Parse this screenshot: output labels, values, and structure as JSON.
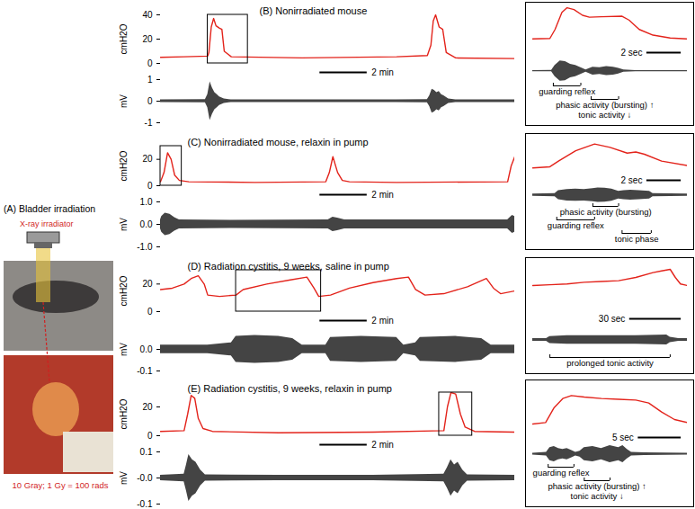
{
  "panel_a": {
    "label": "(A) Bladder irradiation",
    "source": "X-ray irradiator",
    "dose": "10 Gray; 1 Gy = 100 rads"
  },
  "chart_data": [
    {
      "type": "line",
      "title": "(B) Nonirradiated mouse",
      "ylabel": "cmH2O",
      "tick_labels": "y",
      "x": [
        0,
        1,
        2,
        2.05,
        2.15,
        2.25,
        2.35,
        2.5,
        2.6,
        2.7,
        3,
        6,
        10,
        11.3,
        11.45,
        11.55,
        11.65,
        11.8,
        11.95,
        12.1,
        12.5,
        15
      ],
      "series": [
        {
          "color": "#e3231b",
          "values": [
            5,
            5.5,
            6,
            9,
            30,
            37,
            31,
            29,
            28,
            10,
            5.5,
            4.5,
            5.5,
            6.5,
            15,
            35,
            40,
            30,
            28,
            9,
            4.5,
            4
          ]
        }
      ],
      "xlim": [
        0,
        15
      ],
      "ylim": [
        0,
        40
      ],
      "yticks": [
        0,
        20,
        40
      ],
      "window": [
        2,
        3.7
      ]
    },
    {
      "type": "area",
      "ylabel": "mV",
      "tick_labels": "y",
      "color": "#444444",
      "x": [
        0,
        1.9,
        2.0,
        2.1,
        2.2,
        2.3,
        2.4,
        2.5,
        2.7,
        3,
        6,
        10,
        11.3,
        11.4,
        11.5,
        11.6,
        11.7,
        11.8,
        11.9,
        12.0,
        12.2,
        12.5,
        15
      ],
      "envelope": [
        0.06,
        0.07,
        0.3,
        0.9,
        0.6,
        0.4,
        0.3,
        0.2,
        0.1,
        0.06,
        0.06,
        0.06,
        0.07,
        0.25,
        0.55,
        0.5,
        0.4,
        0.45,
        0.3,
        0.25,
        0.1,
        0.06,
        0.06
      ],
      "xlim": [
        0,
        15
      ],
      "ylim": [
        -1,
        1
      ],
      "yticks": [
        -1,
        0,
        1
      ],
      "scale_bar": {
        "length": 2,
        "label": "2 min"
      }
    },
    {
      "type": "line",
      "tick_labels": false,
      "x": [
        0,
        1.0,
        1.3,
        1.7,
        2.0,
        2.4,
        2.9,
        3.3,
        4,
        5.2,
        5.6,
        6.2,
        7,
        8,
        9
      ],
      "series": [
        {
          "color": "#e3231b",
          "values": [
            5,
            5.5,
            15,
            33,
            38,
            36,
            30,
            28,
            28.5,
            29,
            25,
            15,
            9,
            6,
            5
          ]
        }
      ],
      "xlim": [
        0,
        9
      ],
      "ylim": [
        0,
        40
      ]
    },
    {
      "type": "area",
      "tick_labels": false,
      "color": "#444444",
      "x": [
        0,
        1.1,
        1.3,
        1.6,
        1.9,
        2.2,
        2.5,
        2.8,
        3.1,
        3.5,
        3.9,
        4.3,
        4.7,
        5.0,
        5.3,
        6,
        9
      ],
      "envelope": [
        0.05,
        0.06,
        0.5,
        0.9,
        0.85,
        0.6,
        0.5,
        0.3,
        0.1,
        0.35,
        0.3,
        0.4,
        0.35,
        0.25,
        0.1,
        0.05,
        0.05
      ],
      "xlim": [
        0,
        9
      ],
      "ylim": [
        -1,
        1
      ],
      "scale_bar": {
        "length": 2,
        "label": "2 sec"
      },
      "annotations": [
        {
          "text": "guarding reflex",
          "x1": 1.2,
          "x2": 2.8
        },
        {
          "text": "phasic activity (bursting) ↑",
          "x1": 3.4,
          "x2": 5.0
        },
        {
          "text": "tonic activity ↓"
        }
      ]
    },
    {
      "type": "line",
      "title": "(C) Nonirradiated mouse, relaxin in pump",
      "ylabel": "cmH2O",
      "tick_labels": "y",
      "x": [
        0,
        0.15,
        0.3,
        0.45,
        0.6,
        0.8,
        1.2,
        4,
        7.0,
        7.15,
        7.3,
        7.5,
        7.7,
        8,
        10,
        14.7,
        14.85,
        15
      ],
      "series": [
        {
          "color": "#e3231b",
          "values": [
            3,
            10,
            25,
            20,
            8,
            4,
            3,
            2.5,
            3,
            10,
            22,
            10,
            4,
            3,
            2.5,
            3,
            15,
            22
          ]
        }
      ],
      "xlim": [
        0,
        15
      ],
      "ylim": [
        0,
        30
      ],
      "yticks": [
        0,
        20
      ],
      "window": [
        0,
        0.9
      ]
    },
    {
      "type": "area",
      "ylabel": "mV",
      "tick_labels": "y",
      "color": "#444444",
      "x": [
        0,
        0.05,
        0.2,
        0.4,
        0.6,
        0.8,
        3,
        7.1,
        7.3,
        7.5,
        7.8,
        10,
        14.7,
        14.9,
        15
      ],
      "envelope": [
        0.2,
        0.35,
        0.5,
        0.45,
        0.3,
        0.2,
        0.18,
        0.2,
        0.32,
        0.28,
        0.2,
        0.2,
        0.2,
        0.4,
        0.35
      ],
      "xlim": [
        0,
        15
      ],
      "ylim": [
        -1,
        1
      ],
      "yticks": [
        {
          "value": 1,
          "label": "1.0"
        },
        {
          "value": 0,
          "label": "0.0"
        },
        {
          "value": -1,
          "label": "-1.0"
        }
      ],
      "scale_bar": {
        "length": 2,
        "label": "2 min"
      }
    },
    {
      "type": "line",
      "tick_labels": false,
      "x": [
        0,
        1,
        1.5,
        2.5,
        3.6,
        4.5,
        5.5,
        6.0,
        6.5,
        7.5,
        9
      ],
      "series": [
        {
          "color": "#e3231b",
          "values": [
            3,
            4,
            9,
            18,
            24,
            21,
            16,
            17,
            15,
            9,
            5
          ]
        }
      ],
      "xlim": [
        0,
        9
      ],
      "ylim": [
        0,
        30
      ]
    },
    {
      "type": "area",
      "tick_labels": false,
      "color": "#444444",
      "x": [
        0,
        1.3,
        1.5,
        2,
        2.5,
        3,
        3.5,
        3.8,
        4.2,
        4.6,
        5,
        5.3,
        5.7,
        6.2,
        6.8,
        7,
        9
      ],
      "envelope": [
        0.15,
        0.2,
        0.6,
        0.75,
        0.8,
        0.75,
        0.85,
        0.95,
        0.9,
        0.8,
        0.5,
        0.6,
        0.65,
        0.6,
        0.5,
        0.2,
        0.15
      ],
      "xlim": [
        0,
        9
      ],
      "ylim": [
        -1,
        1
      ],
      "scale_bar": {
        "length": 2,
        "label": "2 sec"
      },
      "annotations": [
        {
          "text": "phasic activity (bursting)",
          "x1": 3.5,
          "x2": 5.0
        },
        {
          "text": "guarding reflex",
          "x1": 1.4,
          "x2": 3.6
        },
        {
          "text": "tonic phase",
          "x1": 5.2,
          "x2": 6.9
        }
      ]
    },
    {
      "type": "line",
      "title": "(D) Radiation cystitis, 9 weeks, saline in pump",
      "ylabel": "cmH2O",
      "tick_labels": "y",
      "x": [
        0,
        0.5,
        1.0,
        1.3,
        1.6,
        1.85,
        2.0,
        2.5,
        3.2,
        3.5,
        4.5,
        5.5,
        6.2,
        6.5,
        6.7,
        7.2,
        8,
        9,
        10,
        10.5,
        10.8,
        11.2,
        12,
        13,
        13.8,
        14.1,
        14.4,
        15
      ],
      "series": [
        {
          "color": "#e3231b",
          "values": [
            16,
            17,
            20,
            24,
            26,
            20,
            12,
            11,
            12,
            16,
            20,
            23,
            25,
            17,
            11,
            12,
            17,
            21,
            24,
            25,
            16,
            12,
            13,
            18,
            24,
            17,
            13,
            15
          ]
        }
      ],
      "xlim": [
        0,
        15
      ],
      "ylim": [
        0,
        30
      ],
      "yticks": [
        0,
        20
      ],
      "window": [
        3.2,
        6.8
      ]
    },
    {
      "type": "area",
      "ylabel": "mV",
      "tick_labels": "y",
      "color": "#444444",
      "x": [
        0,
        1.5,
        2.0,
        3.0,
        3.2,
        4,
        5,
        5.6,
        6,
        7,
        7.2,
        8.5,
        10,
        10.3,
        10.8,
        11,
        12.5,
        13.6,
        14,
        15
      ],
      "envelope": [
        0.02,
        0.02,
        0.02,
        0.03,
        0.06,
        0.065,
        0.06,
        0.05,
        0.02,
        0.02,
        0.055,
        0.06,
        0.055,
        0.02,
        0.03,
        0.055,
        0.06,
        0.05,
        0.02,
        0.02
      ],
      "xlim": [
        0,
        15
      ],
      "ylim": [
        -0.1,
        0.1
      ],
      "yticks": [
        {
          "value": 0,
          "label": "0.0"
        },
        -0.1
      ],
      "scale_bar": {
        "length": 2,
        "label": "2 min"
      }
    },
    {
      "type": "line",
      "tick_labels": false,
      "x": [
        0,
        10,
        20,
        30,
        40,
        50,
        60,
        70,
        75,
        80,
        83,
        86,
        90
      ],
      "series": [
        {
          "color": "#e3231b",
          "values": [
            15,
            15.5,
            16,
            17,
            17.5,
            18,
            20,
            23,
            24,
            25,
            20,
            16,
            15
          ]
        }
      ],
      "xlim": [
        0,
        90
      ],
      "ylim": [
        0,
        30
      ]
    },
    {
      "type": "area",
      "tick_labels": false,
      "color": "#444444",
      "x": [
        0,
        8,
        10,
        20,
        40,
        60,
        78,
        80,
        85,
        90
      ],
      "envelope": [
        0.01,
        0.01,
        0.025,
        0.03,
        0.03,
        0.03,
        0.035,
        0.02,
        0.01,
        0.01
      ],
      "xlim": [
        0,
        90
      ],
      "ylim": [
        -0.1,
        0.1
      ],
      "scale_bar": {
        "length": 30,
        "label": "30 sec"
      },
      "annotations": [
        {
          "text": "prolonged tonic activity",
          "x1": 10,
          "x2": 80
        }
      ]
    },
    {
      "type": "line",
      "title": "(E) Radiation cystitis, 9 weeks, relaxin in pump",
      "ylabel": "cmH2O",
      "tick_labels": "y",
      "x": [
        0,
        1.0,
        1.15,
        1.3,
        1.45,
        1.6,
        1.8,
        2.2,
        5,
        9,
        12.0,
        12.15,
        12.3,
        12.5,
        12.7,
        12.9,
        13.3,
        15
      ],
      "series": [
        {
          "color": "#e3231b",
          "values": [
            3,
            3.5,
            15,
            28,
            26,
            12,
            5,
            3,
            2,
            2.5,
            3.5,
            20,
            30,
            29,
            15,
            6,
            3,
            2.5
          ]
        }
      ],
      "xlim": [
        0,
        15
      ],
      "ylim": [
        0,
        30
      ],
      "yticks": [
        0,
        20
      ],
      "window": [
        11.8,
        13.2
      ]
    },
    {
      "type": "area",
      "ylabel": "mV",
      "tick_labels": "y",
      "color": "#444444",
      "x": [
        0,
        1.0,
        1.1,
        1.2,
        1.35,
        1.5,
        1.7,
        1.9,
        5,
        9,
        12.0,
        12.15,
        12.3,
        12.45,
        12.6,
        12.8,
        13,
        15
      ],
      "envelope": [
        0.01,
        0.015,
        0.05,
        0.09,
        0.07,
        0.06,
        0.03,
        0.012,
        0.01,
        0.01,
        0.015,
        0.04,
        0.07,
        0.05,
        0.06,
        0.03,
        0.012,
        0.01
      ],
      "xlim": [
        0,
        15
      ],
      "ylim": [
        -0.1,
        0.1
      ],
      "yticks": [
        {
          "value": 0.1,
          "label": "0.1"
        },
        {
          "value": 0,
          "label": "-0.0"
        },
        -0.1
      ],
      "scale_bar": {
        "length": 2,
        "label": "2 min"
      }
    },
    {
      "type": "line",
      "tick_labels": false,
      "x": [
        0,
        1.5,
        2.5,
        3.5,
        4.5,
        6,
        8,
        10,
        12,
        13.5,
        15,
        16.5,
        18
      ],
      "series": [
        {
          "color": "#e3231b",
          "values": [
            3,
            4,
            14,
            20,
            22,
            21,
            20,
            19.5,
            19,
            17,
            11,
            6,
            4
          ]
        }
      ],
      "xlim": [
        0,
        18
      ],
      "ylim": [
        0,
        30
      ]
    },
    {
      "type": "area",
      "tick_labels": false,
      "color": "#444444",
      "x": [
        0,
        1.6,
        2,
        2.5,
        3,
        3.5,
        4,
        4.5,
        5.0,
        5.5,
        6,
        7,
        8,
        9,
        10,
        10.5,
        11,
        11.5,
        13,
        18
      ],
      "envelope": [
        0.01,
        0.02,
        0.07,
        0.08,
        0.06,
        0.05,
        0.06,
        0.04,
        0.02,
        0.03,
        0.07,
        0.08,
        0.06,
        0.09,
        0.07,
        0.09,
        0.05,
        0.02,
        0.015,
        0.01
      ],
      "xlim": [
        0,
        18
      ],
      "ylim": [
        -0.1,
        0.1
      ],
      "scale_bar": {
        "length": 5,
        "label": "5 sec"
      },
      "annotations": [
        {
          "text": "guarding reflex",
          "x1": 1.8,
          "x2": 4.8
        },
        {
          "text": "phasic activity (bursting) ↑",
          "x1": 6,
          "x2": 9
        },
        {
          "text": "tonic activity ↓"
        }
      ]
    }
  ]
}
